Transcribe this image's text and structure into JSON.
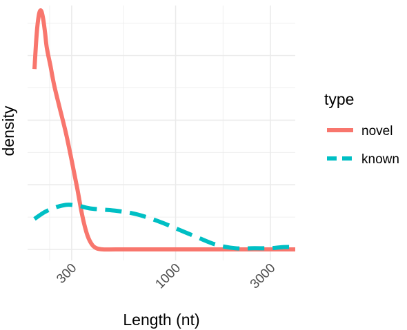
{
  "chart_data": {
    "type": "line",
    "title": "",
    "xlabel": "Length (nt)",
    "ylabel": "density",
    "x_scale": "log10",
    "xlim": [
      180,
      4000
    ],
    "ylim": [
      0,
      1.0
    ],
    "y_ticks_labeled": false,
    "x_ticks": [
      300,
      1000,
      3000
    ],
    "x_tick_labels": [
      "300",
      "1000",
      "3000"
    ],
    "grid": true,
    "legend": {
      "title": "type",
      "position": "right"
    },
    "colors": {
      "novel": "#F8766D",
      "known": "#00BFC4"
    },
    "series": [
      {
        "name": "novel",
        "linestyle": "solid",
        "x": [
          195,
          200,
          205,
          210,
          215,
          220,
          225,
          235,
          245,
          260,
          280,
          300,
          320,
          340,
          360,
          380,
          400,
          430,
          500,
          700,
          1000,
          2000,
          3000,
          4000
        ],
        "y": [
          0.77,
          0.92,
          1.0,
          1.02,
          0.99,
          0.93,
          0.86,
          0.78,
          0.7,
          0.61,
          0.5,
          0.38,
          0.26,
          0.14,
          0.06,
          0.02,
          0.005,
          0.0,
          0.0,
          0.0,
          0.0,
          0.0,
          0.0,
          0.0
        ]
      },
      {
        "name": "known",
        "linestyle": "dashed",
        "x": [
          195,
          220,
          250,
          280,
          300,
          330,
          370,
          430,
          500,
          600,
          700,
          850,
          1000,
          1300,
          1600,
          2000,
          2500,
          3000,
          3500,
          4000
        ],
        "y": [
          0.13,
          0.16,
          0.18,
          0.19,
          0.19,
          0.185,
          0.175,
          0.17,
          0.165,
          0.155,
          0.14,
          0.115,
          0.09,
          0.05,
          0.02,
          0.005,
          0.005,
          0.005,
          0.01,
          0.01
        ]
      }
    ]
  }
}
